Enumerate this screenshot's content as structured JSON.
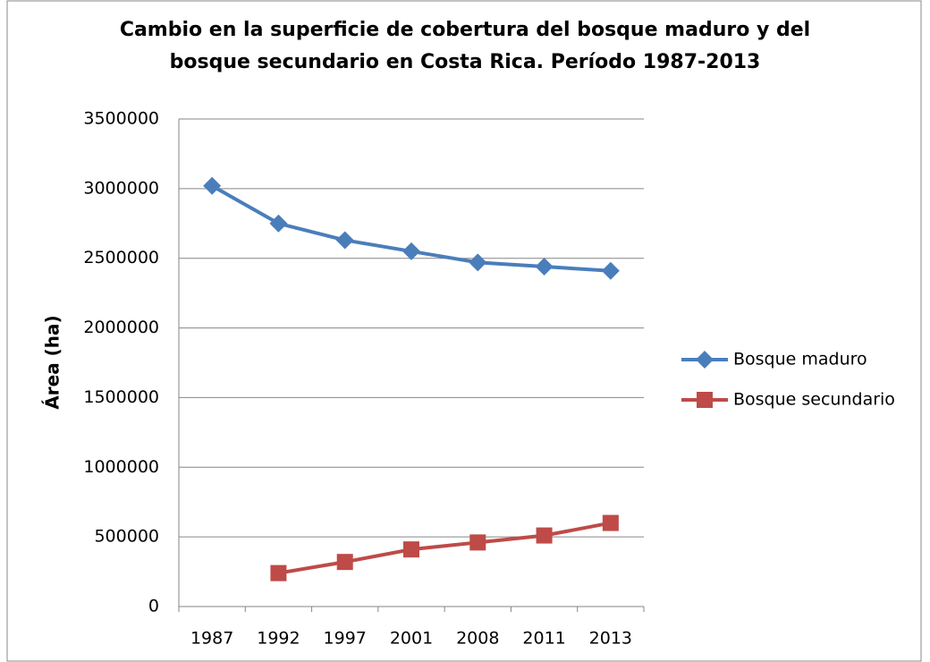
{
  "chart_data": {
    "type": "line",
    "title": [
      "Cambio en la superficie de cobertura del bosque maduro y del",
      "bosque secundario en Costa Rica. Período 1987-2013"
    ],
    "y_label": "Área (ha)",
    "categories": [
      "1987",
      "1992",
      "1997",
      "2001",
      "2008",
      "2011",
      "2013"
    ],
    "series": [
      {
        "name": "Bosque maduro",
        "color": "#4a7ebb",
        "marker": "diamond",
        "values": [
          3020000,
          2750000,
          2630000,
          2550000,
          2470000,
          2440000,
          2410000
        ]
      },
      {
        "name": "Bosque secundario",
        "color": "#be4b48",
        "marker": "square",
        "values": [
          null,
          240000,
          320000,
          410000,
          460000,
          510000,
          600000
        ]
      }
    ],
    "ylim": [
      0,
      3500000
    ],
    "yticks": [
      0,
      500000,
      1000000,
      1500000,
      2000000,
      2500000,
      3000000,
      3500000
    ],
    "grid": true,
    "legend": "right"
  }
}
